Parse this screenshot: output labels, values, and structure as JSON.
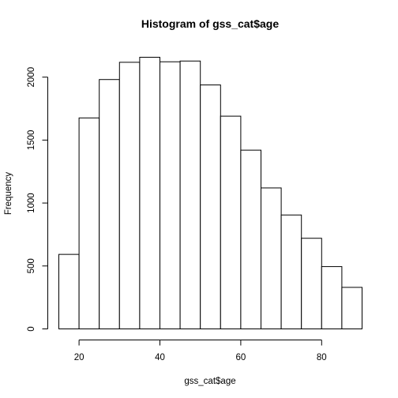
{
  "chart_data": {
    "type": "bar",
    "title": "Histogram of gss_cat$age",
    "xlabel": "gss_cat$age",
    "ylabel": "Frequency",
    "bin_edges": [
      15,
      20,
      25,
      30,
      35,
      40,
      45,
      50,
      55,
      60,
      65,
      70,
      75,
      80,
      85,
      90
    ],
    "values": [
      592,
      1676,
      1981,
      2118,
      2158,
      2122,
      2128,
      1938,
      1690,
      1420,
      1120,
      905,
      720,
      495,
      330
    ],
    "xlim": [
      15,
      90
    ],
    "ylim": [
      0,
      2158
    ],
    "x_ticks": [
      20,
      40,
      60,
      80
    ],
    "y_ticks": [
      0,
      500,
      1000,
      1500,
      2000
    ],
    "grid": false,
    "legend": "none"
  }
}
